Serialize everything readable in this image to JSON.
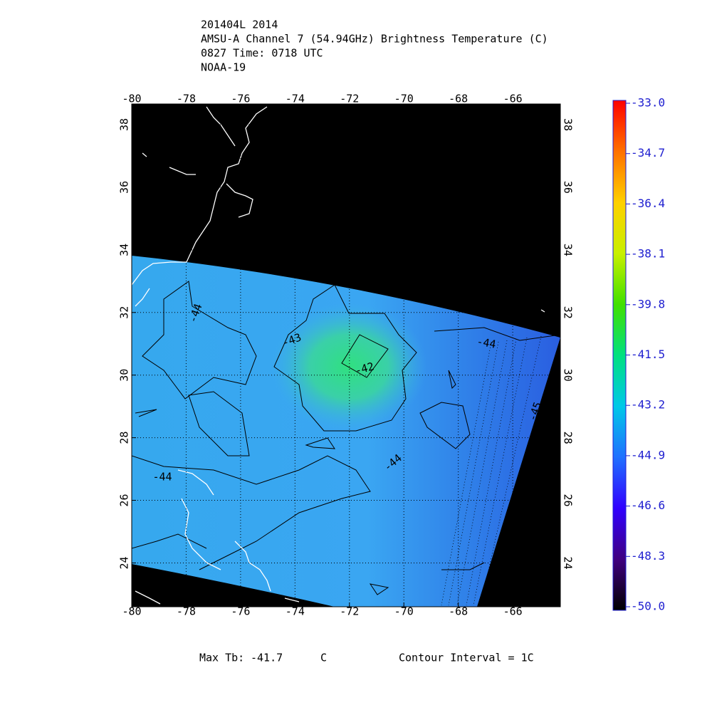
{
  "title_lines": [
    "201404L 2014",
    "AMSU-A Channel 7 (54.94GHz) Brightness Temperature (C)",
    "0827 Time: 0718 UTC",
    "NOAA-19"
  ],
  "map": {
    "xlim": [
      -80,
      -64.25
    ],
    "ylim": [
      22.6,
      38.66
    ],
    "xticks": [
      -80,
      -78,
      -76,
      -74,
      -72,
      -70,
      -68,
      -66
    ],
    "yticks": [
      24,
      26,
      28,
      30,
      32,
      34,
      36,
      38
    ],
    "contour_labels": [
      "-44",
      "-43",
      "-42",
      "-44",
      "-44",
      "-44",
      "-45"
    ]
  },
  "colorbar": {
    "lim": [
      -50,
      -33
    ],
    "ticks": [
      {
        "value": -33,
        "label": "-33.0"
      },
      {
        "value": -34.7,
        "label": "-34.7"
      },
      {
        "value": -36.4,
        "label": "-36.4"
      },
      {
        "value": -38.1,
        "label": "-38.1"
      },
      {
        "value": -39.8,
        "label": "-39.8"
      },
      {
        "value": -41.5,
        "label": "-41.5"
      },
      {
        "value": -43.2,
        "label": "-43.2"
      },
      {
        "value": -44.9,
        "label": "-44.9"
      },
      {
        "value": -46.6,
        "label": "-46.6"
      },
      {
        "value": -48.3,
        "label": "-48.3"
      },
      {
        "value": -50,
        "label": "-50.0"
      }
    ]
  },
  "footer": {
    "max_label": "Max Tb:",
    "max_value": -41.7,
    "max_unit": "C",
    "contour_interval": "Contour Interval = 1C"
  }
}
